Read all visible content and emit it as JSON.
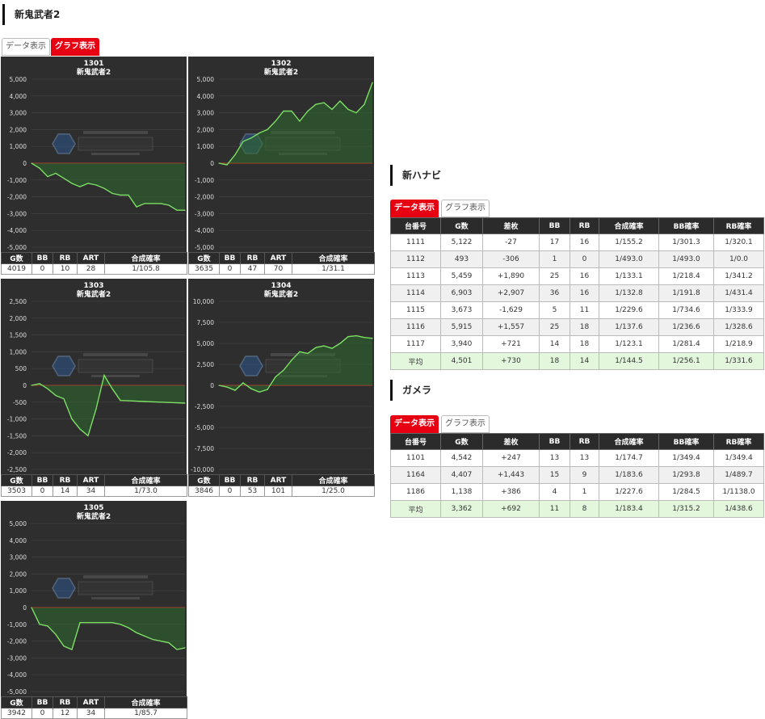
{
  "section1": {
    "title": "新鬼武者2",
    "tabs": [
      {
        "label": "データ表示"
      },
      {
        "label": "グラフ表示"
      }
    ]
  },
  "charts": [
    {
      "id": "1301",
      "name": "新鬼武者2",
      "chart_data": {
        "type": "area",
        "ylim": [
          -5000,
          5000
        ],
        "ticks": [
          "5,000",
          "4,000",
          "3,000",
          "2,000",
          "1,000",
          "0",
          "-1,000",
          "-2,000",
          "-3,000",
          "-4,000",
          "-5,000"
        ],
        "values": [
          0,
          -300,
          -800,
          -600,
          -900,
          -1200,
          -1400,
          -1200,
          -1300,
          -1500,
          -1800,
          -1900,
          -1900,
          -2600,
          -2400,
          -2400,
          -2400,
          -2500,
          -2800,
          -2800
        ]
      },
      "stats": {
        "headers": [
          "G数",
          "BB",
          "RB",
          "ART",
          "合成確率"
        ],
        "values": [
          "4019",
          "0",
          "10",
          "28",
          "1/105.8"
        ]
      }
    },
    {
      "id": "1302",
      "name": "新鬼武者2",
      "chart_data": {
        "type": "area",
        "ylim": [
          -5000,
          5000
        ],
        "ticks": [
          "5,000",
          "4,000",
          "3,000",
          "2,000",
          "1,000",
          "0",
          "-1,000",
          "-2,000",
          "-3,000",
          "-4,000",
          "-5,000"
        ],
        "values": [
          0,
          -100,
          500,
          1300,
          1500,
          1800,
          2000,
          2500,
          3100,
          3100,
          2500,
          3100,
          3500,
          3600,
          3200,
          3700,
          3200,
          3000,
          3500,
          4800
        ]
      },
      "stats": {
        "headers": [
          "G数",
          "BB",
          "RB",
          "ART",
          "合成確率"
        ],
        "values": [
          "3635",
          "0",
          "47",
          "70",
          "1/31.1"
        ]
      }
    },
    {
      "id": "1303",
      "name": "新鬼武者2",
      "chart_data": {
        "type": "area",
        "ylim": [
          -2500,
          2500
        ],
        "ticks": [
          "2,500",
          "2,000",
          "1,500",
          "1,000",
          "500",
          "0",
          "-500",
          "-1,000",
          "-1,500",
          "-2,000",
          "-2,500"
        ],
        "values": [
          0,
          50,
          -100,
          -300,
          -400,
          -1000,
          -1300,
          -1500,
          -700,
          300,
          -100,
          -450,
          -460,
          -470,
          -480,
          -490,
          -500,
          -510,
          -520,
          -530
        ]
      },
      "stats": {
        "headers": [
          "G数",
          "BB",
          "RB",
          "ART",
          "合成確率"
        ],
        "values": [
          "3503",
          "0",
          "14",
          "34",
          "1/73.0"
        ]
      }
    },
    {
      "id": "1304",
      "name": "新鬼武者2",
      "chart_data": {
        "type": "area",
        "ylim": [
          -10000,
          10000
        ],
        "ticks": [
          "10,000",
          "7,500",
          "5,000",
          "2,500",
          "0",
          "-2,500",
          "-5,000",
          "-7,500",
          "-10,000"
        ],
        "values": [
          0,
          -200,
          -600,
          300,
          -400,
          -800,
          -500,
          1000,
          1800,
          3000,
          4000,
          3800,
          4500,
          4700,
          4400,
          5000,
          5800,
          5900,
          5700,
          5600
        ]
      },
      "stats": {
        "headers": [
          "G数",
          "BB",
          "RB",
          "ART",
          "合成確率"
        ],
        "values": [
          "3846",
          "0",
          "53",
          "101",
          "1/25.0"
        ]
      }
    },
    {
      "id": "1305",
      "name": "新鬼武者2",
      "chart_data": {
        "type": "area",
        "ylim": [
          -5000,
          5000
        ],
        "ticks": [
          "5,000",
          "4,000",
          "3,000",
          "2,000",
          "1,000",
          "0",
          "-1,000",
          "-2,000",
          "-3,000",
          "-4,000",
          "-5,000"
        ],
        "values": [
          0,
          -1000,
          -1100,
          -1600,
          -2300,
          -2500,
          -900,
          -900,
          -900,
          -900,
          -900,
          -1000,
          -1200,
          -1500,
          -1700,
          -1900,
          -2000,
          -2100,
          -2500,
          -2400
        ]
      },
      "stats": {
        "headers": [
          "G数",
          "BB",
          "RB",
          "ART",
          "合成確率"
        ],
        "values": [
          "3942",
          "0",
          "12",
          "34",
          "1/85.7"
        ]
      }
    }
  ],
  "section2": {
    "title": "新ハナビ",
    "tabs": [
      {
        "label": "データ表示"
      },
      {
        "label": "グラフ表示"
      }
    ],
    "headers": [
      "台番号",
      "G数",
      "差枚",
      "BB",
      "RB",
      "合成確率",
      "BB確率",
      "RB確率"
    ],
    "rows": [
      [
        "1111",
        "5,122",
        "-27",
        "17",
        "16",
        "1/155.2",
        "1/301.3",
        "1/320.1"
      ],
      [
        "1112",
        "493",
        "-306",
        "1",
        "0",
        "1/493.0",
        "1/493.0",
        "1/0.0"
      ],
      [
        "1113",
        "5,459",
        "+1,890",
        "25",
        "16",
        "1/133.1",
        "1/218.4",
        "1/341.2"
      ],
      [
        "1114",
        "6,903",
        "+2,907",
        "36",
        "16",
        "1/132.8",
        "1/191.8",
        "1/431.4"
      ],
      [
        "1115",
        "3,673",
        "-1,629",
        "5",
        "11",
        "1/229.6",
        "1/734.6",
        "1/333.9"
      ],
      [
        "1116",
        "5,915",
        "+1,557",
        "25",
        "18",
        "1/137.6",
        "1/236.6",
        "1/328.6"
      ],
      [
        "1117",
        "3,940",
        "+721",
        "14",
        "18",
        "1/123.1",
        "1/281.4",
        "1/218.9"
      ]
    ],
    "avg": [
      "平均",
      "4,501",
      "+730",
      "18",
      "14",
      "1/144.5",
      "1/256.1",
      "1/331.6"
    ]
  },
  "section3": {
    "title": "ガメラ",
    "tabs": [
      {
        "label": "データ表示"
      },
      {
        "label": "グラフ表示"
      }
    ],
    "headers": [
      "台番号",
      "G数",
      "差枚",
      "BB",
      "RB",
      "合成確率",
      "BB確率",
      "RB確率"
    ],
    "rows": [
      [
        "1101",
        "4,542",
        "+247",
        "13",
        "13",
        "1/174.7",
        "1/349.4",
        "1/349.4"
      ],
      [
        "1164",
        "4,407",
        "+1,443",
        "15",
        "9",
        "1/183.6",
        "1/293.8",
        "1/489.7"
      ],
      [
        "1186",
        "1,138",
        "+386",
        "4",
        "1",
        "1/227.6",
        "1/284.5",
        "1/1138.0"
      ]
    ],
    "avg": [
      "平均",
      "3,362",
      "+692",
      "11",
      "8",
      "1/183.4",
      "1/315.2",
      "1/438.6"
    ]
  }
}
